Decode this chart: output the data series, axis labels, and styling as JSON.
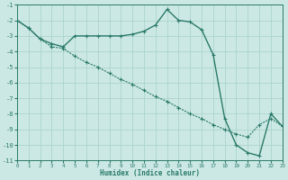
{
  "xlabel": "Humidex (Indice chaleur)",
  "bg_color": "#cce8e4",
  "grid_color": "#aad4cc",
  "line_color": "#2a7a6a",
  "x": [
    0,
    1,
    2,
    3,
    4,
    5,
    6,
    7,
    8,
    9,
    10,
    11,
    12,
    13,
    14,
    15,
    16,
    17,
    18,
    19,
    20,
    21,
    22,
    23
  ],
  "line1": [
    -2.0,
    -2.5,
    -3.2,
    -3.5,
    -3.7,
    -3.0,
    -3.0,
    -3.0,
    -3.0,
    -3.0,
    -2.9,
    -2.7,
    -2.3,
    -1.3,
    -2.0,
    -2.1,
    -2.6,
    -4.2,
    -8.3,
    -10.0,
    -10.5,
    -10.7,
    -8.0,
    -8.8
  ],
  "line2": [
    -2.0,
    -2.5,
    -3.2,
    -3.7,
    -3.8,
    -4.3,
    -4.7,
    -5.0,
    -5.4,
    -5.8,
    -6.1,
    -6.5,
    -6.9,
    -7.2,
    -7.6,
    -8.0,
    -8.3,
    -8.7,
    -9.0,
    -9.3,
    -9.5,
    -8.7,
    -8.3,
    -8.8
  ],
  "ylim": [
    -11,
    -1
  ],
  "xlim": [
    0,
    23
  ],
  "yticks": [
    -1,
    -2,
    -3,
    -4,
    -5,
    -6,
    -7,
    -8,
    -9,
    -10,
    -11
  ],
  "xticks": [
    0,
    1,
    2,
    3,
    4,
    5,
    6,
    7,
    8,
    9,
    10,
    11,
    12,
    13,
    14,
    15,
    16,
    17,
    18,
    19,
    20,
    21,
    22,
    23
  ]
}
